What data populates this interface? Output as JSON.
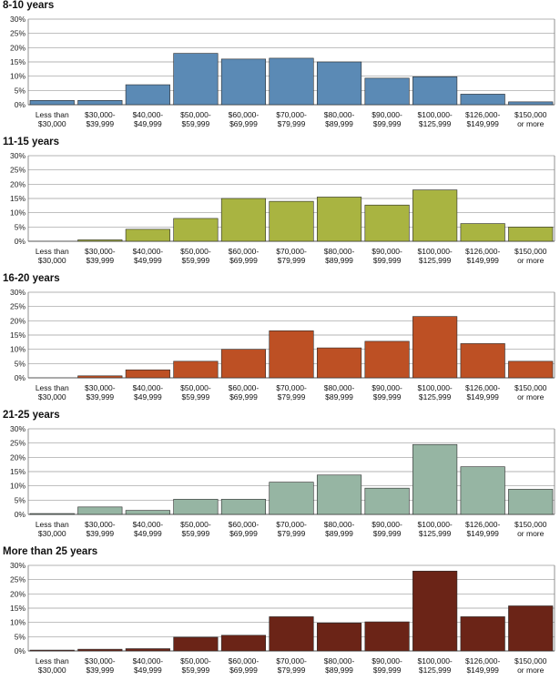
{
  "chart_data": [
    {
      "type": "bar",
      "title": "8-10 years",
      "color": "#5b8ab5",
      "categories": [
        [
          "Less than",
          "$30,000"
        ],
        [
          "$30,000-",
          "$39,999"
        ],
        [
          "$40,000-",
          "$49,999"
        ],
        [
          "$50,000-",
          "$59,999"
        ],
        [
          "$60,000-",
          "$69,999"
        ],
        [
          "$70,000-",
          "$79,999"
        ],
        [
          "$80,000-",
          "$89,999"
        ],
        [
          "$90,000-",
          "$99,999"
        ],
        [
          "$100,000-",
          "$125,999"
        ],
        [
          "$126,000-",
          "$149,999"
        ],
        [
          "$150,000",
          "or more"
        ]
      ],
      "values": [
        1.5,
        1.5,
        7,
        18,
        16,
        16.3,
        15,
        9.3,
        9.8,
        3.7,
        1
      ],
      "ylim": [
        0,
        30
      ],
      "yticks": [
        "0%",
        "5%",
        "10%",
        "15%",
        "20%",
        "25%",
        "30%"
      ],
      "grid": true
    },
    {
      "type": "bar",
      "title": "11-15 years",
      "color": "#a9b441",
      "categories": [
        [
          "Less than",
          "$30,000"
        ],
        [
          "$30,000-",
          "$39,999"
        ],
        [
          "$40,000-",
          "$49,999"
        ],
        [
          "$50,000-",
          "$59,999"
        ],
        [
          "$60,000-",
          "$69,999"
        ],
        [
          "$70,000-",
          "$79,999"
        ],
        [
          "$80,000-",
          "$89,999"
        ],
        [
          "$90,000-",
          "$99,999"
        ],
        [
          "$100,000-",
          "$125,999"
        ],
        [
          "$126,000-",
          "$149,999"
        ],
        [
          "$150,000",
          "or more"
        ]
      ],
      "values": [
        0,
        0.5,
        4.2,
        8,
        15,
        14,
        15.5,
        12.7,
        18,
        6.2,
        5
      ],
      "ylim": [
        0,
        30
      ],
      "yticks": [
        "0%",
        "5%",
        "10%",
        "15%",
        "20%",
        "25%",
        "30%"
      ],
      "grid": true
    },
    {
      "type": "bar",
      "title": "16-20 years",
      "color": "#bd5024",
      "categories": [
        [
          "Less than",
          "$30,000"
        ],
        [
          "$30,000-",
          "$39,999"
        ],
        [
          "$40,000-",
          "$49,999"
        ],
        [
          "$50,000-",
          "$59,999"
        ],
        [
          "$60,000-",
          "$69,999"
        ],
        [
          "$70,000-",
          "$79,999"
        ],
        [
          "$80,000-",
          "$89,999"
        ],
        [
          "$90,000-",
          "$99,999"
        ],
        [
          "$100,000-",
          "$125,999"
        ],
        [
          "$126,000-",
          "$149,999"
        ],
        [
          "$150,000",
          "or more"
        ]
      ],
      "values": [
        0,
        0.7,
        2.8,
        5.8,
        10,
        16.5,
        10.5,
        12.8,
        21.5,
        12,
        5.8
      ],
      "ylim": [
        0,
        30
      ],
      "yticks": [
        "0%",
        "5%",
        "10%",
        "15%",
        "20%",
        "25%",
        "30%"
      ],
      "grid": true
    },
    {
      "type": "bar",
      "title": "21-25 years",
      "color": "#96b5a3",
      "categories": [
        [
          "Less than",
          "$30,000"
        ],
        [
          "$30,000-",
          "$39,999"
        ],
        [
          "$40,000-",
          "$49,999"
        ],
        [
          "$50,000-",
          "$59,999"
        ],
        [
          "$60,000-",
          "$69,999"
        ],
        [
          "$70,000-",
          "$79,999"
        ],
        [
          "$80,000-",
          "$89,999"
        ],
        [
          "$90,000-",
          "$99,999"
        ],
        [
          "$100,000-",
          "$125,999"
        ],
        [
          "$126,000-",
          "$149,999"
        ],
        [
          "$150,000",
          "or more"
        ]
      ],
      "values": [
        0.3,
        2.6,
        1.4,
        5.3,
        5.3,
        11.3,
        13.8,
        9.2,
        24.5,
        16.7,
        8.8
      ],
      "ylim": [
        0,
        30
      ],
      "yticks": [
        "0%",
        "5%",
        "10%",
        "15%",
        "20%",
        "25%",
        "30%"
      ],
      "grid": true
    },
    {
      "type": "bar",
      "title": "More than 25 years",
      "color": "#6b2417",
      "categories": [
        [
          "Less than",
          "$30,000"
        ],
        [
          "$30,000-",
          "$39,999"
        ],
        [
          "$40,000-",
          "$49,999"
        ],
        [
          "$50,000-",
          "$59,999"
        ],
        [
          "$60,000-",
          "$69,999"
        ],
        [
          "$70,000-",
          "$79,999"
        ],
        [
          "$80,000-",
          "$89,999"
        ],
        [
          "$90,000-",
          "$99,999"
        ],
        [
          "$100,000-",
          "$125,999"
        ],
        [
          "$126,000-",
          "$149,999"
        ],
        [
          "$150,000",
          "or more"
        ]
      ],
      "values": [
        0.3,
        0.6,
        0.8,
        4.8,
        5.5,
        12,
        9.8,
        10.2,
        28,
        12,
        15.8
      ],
      "ylim": [
        0,
        30
      ],
      "yticks": [
        "0%",
        "5%",
        "10%",
        "15%",
        "20%",
        "25%",
        "30%"
      ],
      "grid": true
    }
  ]
}
